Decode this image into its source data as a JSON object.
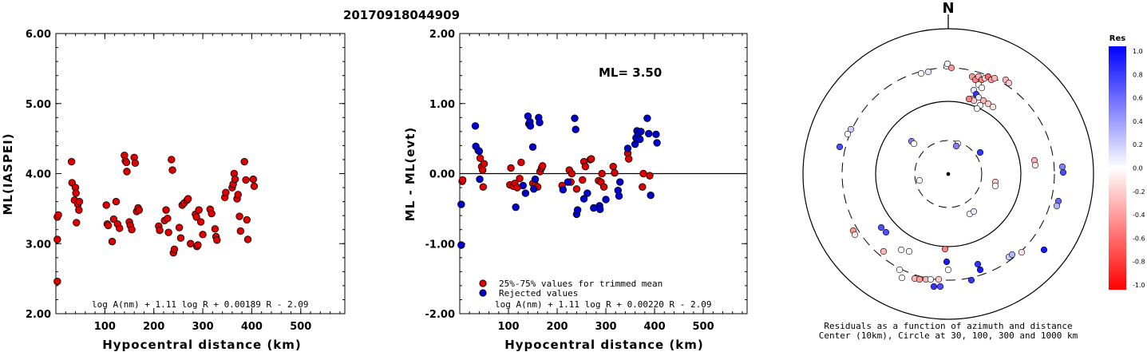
{
  "title": "20170918044909",
  "colors": {
    "trimmed": "#dd0000",
    "rejected": "#0000cc"
  },
  "chart_data": [
    {
      "type": "scatter",
      "id": "ml-vs-distance",
      "title": "",
      "xlabel": "Hypocentral distance (km)",
      "ylabel": "ML(IASPEI)",
      "xlim": [
        0,
        590
      ],
      "ylim": [
        2.0,
        6.0
      ],
      "xticks": [
        "100",
        "200",
        "300",
        "400",
        "500"
      ],
      "yticks": [
        "2.00",
        "3.00",
        "4.00",
        "5.00",
        "6.00"
      ],
      "formula": "log A(nm) + 1.11 log R + 0.00189 R - 2.09",
      "points": [
        [
          3,
          2.46
        ],
        [
          3,
          3.06
        ],
        [
          3,
          3.38
        ],
        [
          5,
          3.41
        ],
        [
          32,
          4.17
        ],
        [
          33,
          3.87
        ],
        [
          38,
          3.62
        ],
        [
          40,
          3.8
        ],
        [
          41,
          3.72
        ],
        [
          42,
          3.3
        ],
        [
          45,
          3.56
        ],
        [
          47,
          3.48
        ],
        [
          48,
          3.6
        ],
        [
          103,
          3.55
        ],
        [
          105,
          3.28
        ],
        [
          107,
          3.26
        ],
        [
          115,
          3.03
        ],
        [
          118,
          3.35
        ],
        [
          123,
          3.6
        ],
        [
          126,
          3.28
        ],
        [
          130,
          3.22
        ],
        [
          140,
          4.26
        ],
        [
          142,
          4.18
        ],
        [
          144,
          4.16
        ],
        [
          145,
          4.03
        ],
        [
          150,
          3.31
        ],
        [
          152,
          3.26
        ],
        [
          155,
          3.2
        ],
        [
          160,
          4.23
        ],
        [
          162,
          4.15
        ],
        [
          165,
          3.46
        ],
        [
          168,
          3.51
        ],
        [
          170,
          3.48
        ],
        [
          210,
          3.25
        ],
        [
          212,
          3.19
        ],
        [
          222,
          3.33
        ],
        [
          225,
          3.48
        ],
        [
          228,
          3.36
        ],
        [
          230,
          3.16
        ],
        [
          236,
          4.2
        ],
        [
          238,
          4.05
        ],
        [
          240,
          2.87
        ],
        [
          242,
          2.92
        ],
        [
          252,
          3.23
        ],
        [
          255,
          3.08
        ],
        [
          258,
          3.55
        ],
        [
          262,
          3.58
        ],
        [
          268,
          3.62
        ],
        [
          270,
          3.64
        ],
        [
          275,
          3.0
        ],
        [
          285,
          3.42
        ],
        [
          287,
          3.38
        ],
        [
          288,
          2.96
        ],
        [
          290,
          2.98
        ],
        [
          292,
          3.48
        ],
        [
          296,
          3.31
        ],
        [
          300,
          3.13
        ],
        [
          315,
          3.49
        ],
        [
          318,
          3.43
        ],
        [
          325,
          3.21
        ],
        [
          327,
          3.1
        ],
        [
          329,
          3.05
        ],
        [
          345,
          3.66
        ],
        [
          347,
          3.73
        ],
        [
          360,
          3.8
        ],
        [
          362,
          3.85
        ],
        [
          364,
          4.0
        ],
        [
          366,
          3.92
        ],
        [
          370,
          3.64
        ],
        [
          372,
          3.7
        ],
        [
          375,
          3.39
        ],
        [
          377,
          3.18
        ],
        [
          385,
          4.17
        ],
        [
          388,
          3.91
        ],
        [
          390,
          3.34
        ],
        [
          392,
          3.06
        ],
        [
          403,
          3.92
        ],
        [
          405,
          3.82
        ]
      ]
    },
    {
      "type": "scatter",
      "id": "residual-vs-distance",
      "title": "",
      "xlabel": "Hypocentral distance (km)",
      "ylabel": "ML - ML(evt)",
      "xlim": [
        0,
        590
      ],
      "ylim": [
        -2.0,
        2.0
      ],
      "xticks": [
        "100",
        "200",
        "300",
        "400",
        "500"
      ],
      "yticks": [
        "-2.00",
        "-1.00",
        "0.00",
        "1.00",
        "2.00"
      ],
      "annotation": "ML= 3.50",
      "formula": "log A(nm) + 1.11 log R + 0.00220 R - 2.09",
      "legend": [
        {
          "label": "25%-75% values for trimmed mean",
          "series": "trimmed"
        },
        {
          "label": "Rejected values",
          "series": "rejected"
        }
      ],
      "series": [
        {
          "name": "25%-75% values for trimmed mean",
          "points": [
            [
              5,
              -0.11
            ],
            [
              6,
              -0.09
            ],
            [
              38,
              0.33
            ],
            [
              42,
              0.22
            ],
            [
              45,
              0.1
            ],
            [
              47,
              0.05
            ],
            [
              48,
              -0.19
            ],
            [
              50,
              0.14
            ],
            [
              103,
              -0.16
            ],
            [
              105,
              0.08
            ],
            [
              110,
              -0.18
            ],
            [
              113,
              -0.14
            ],
            [
              118,
              -0.2
            ],
            [
              123,
              -0.07
            ],
            [
              126,
              0.16
            ],
            [
              150,
              -0.14
            ],
            [
              155,
              -0.16
            ],
            [
              160,
              -0.19
            ],
            [
              165,
              0.03
            ],
            [
              168,
              0.08
            ],
            [
              170,
              0.11
            ],
            [
              210,
              -0.17
            ],
            [
              225,
              0.05
            ],
            [
              228,
              -0.12
            ],
            [
              230,
              0.0
            ],
            [
              240,
              -0.22
            ],
            [
              252,
              -0.09
            ],
            [
              255,
              0.17
            ],
            [
              258,
              0.1
            ],
            [
              268,
              0.2
            ],
            [
              270,
              0.21
            ],
            [
              285,
              -0.1
            ],
            [
              290,
              -0.12
            ],
            [
              292,
              0.0
            ],
            [
              296,
              -0.19
            ],
            [
              315,
              0.1
            ],
            [
              318,
              0.01
            ],
            [
              345,
              0.29
            ],
            [
              347,
              0.21
            ],
            [
              375,
              -0.19
            ],
            [
              377,
              0.0
            ],
            [
              390,
              -0.03
            ]
          ]
        },
        {
          "name": "Rejected values",
          "points": [
            [
              3,
              -1.02
            ],
            [
              3,
              -0.44
            ],
            [
              32,
              0.68
            ],
            [
              33,
              0.39
            ],
            [
              40,
              0.32
            ],
            [
              41,
              -0.08
            ],
            [
              115,
              -0.48
            ],
            [
              130,
              -0.17
            ],
            [
              135,
              -0.28
            ],
            [
              140,
              0.82
            ],
            [
              142,
              0.71
            ],
            [
              144,
              0.74
            ],
            [
              145,
              0.68
            ],
            [
              150,
              0.38
            ],
            [
              152,
              -0.22
            ],
            [
              155,
              -0.08
            ],
            [
              162,
              0.8
            ],
            [
              164,
              0.73
            ],
            [
              212,
              -0.23
            ],
            [
              222,
              -0.12
            ],
            [
              236,
              0.79
            ],
            [
              238,
              0.63
            ],
            [
              240,
              -0.58
            ],
            [
              242,
              -0.52
            ],
            [
              255,
              -0.36
            ],
            [
              262,
              -0.28
            ],
            [
              275,
              -0.49
            ],
            [
              287,
              -0.46
            ],
            [
              288,
              -0.51
            ],
            [
              300,
              -0.37
            ],
            [
              325,
              -0.24
            ],
            [
              327,
              -0.32
            ],
            [
              329,
              -0.12
            ],
            [
              345,
              0.36
            ],
            [
              360,
              0.42
            ],
            [
              362,
              0.51
            ],
            [
              364,
              0.61
            ],
            [
              366,
              0.56
            ],
            [
              370,
              0.49
            ],
            [
              372,
              0.6
            ],
            [
              385,
              0.79
            ],
            [
              388,
              0.57
            ],
            [
              392,
              -0.31
            ],
            [
              403,
              0.56
            ],
            [
              405,
              0.44
            ]
          ]
        }
      ]
    },
    {
      "type": "scatter",
      "id": "azimuth-residual-map",
      "title": "",
      "north_label": "N",
      "caption_line1": "Residuals as a function of azimuth and distance",
      "caption_line2": "Center (10km), Circle at 30, 100, 300 and 1000 km",
      "colorbar": {
        "title": "Res",
        "ticks": [
          "1.0",
          "0.8",
          "0.6",
          "0.4",
          "0.2",
          "0.0",
          "-0.2",
          "-0.4",
          "-0.6",
          "-0.8",
          "-1.0"
        ]
      },
      "points": [
        [
          -2,
          -135,
          0.05
        ],
        [
          -1,
          -138,
          0.05
        ],
        [
          4,
          -133,
          -0.4
        ],
        [
          -34,
          -126,
          0.0
        ],
        [
          -25,
          -128,
          0.1
        ],
        [
          30,
          -122,
          -0.4
        ],
        [
          34,
          -118,
          -0.5
        ],
        [
          38,
          -122,
          -0.3
        ],
        [
          42,
          -118,
          -0.5
        ],
        [
          46,
          -120,
          -0.2
        ],
        [
          50,
          -122,
          -0.6
        ],
        [
          54,
          -118,
          -0.4
        ],
        [
          58,
          -120,
          -0.3
        ],
        [
          72,
          -118,
          -0.3
        ],
        [
          76,
          -114,
          -0.2
        ],
        [
          38,
          -112,
          0.0
        ],
        [
          42,
          -108,
          0.0
        ],
        [
          32,
          -105,
          0.1
        ],
        [
          35,
          -100,
          0.8
        ],
        [
          38,
          -96,
          0.1
        ],
        [
          30,
          -94,
          -0.2
        ],
        [
          44,
          -92,
          -0.3
        ],
        [
          32,
          -92,
          -0.2
        ],
        [
          50,
          -88,
          -0.2
        ],
        [
          40,
          -86,
          0.0
        ],
        [
          26,
          -94,
          -0.5
        ],
        [
          56,
          -84,
          -0.1
        ],
        [
          36,
          -82,
          0.0
        ],
        [
          -122,
          -56,
          0.2
        ],
        [
          -126,
          -50,
          0.0
        ],
        [
          -136,
          -34,
          0.7
        ],
        [
          -46,
          -41,
          0.5
        ],
        [
          -43,
          -38,
          0.0
        ],
        [
          12,
          -38,
          0.0
        ],
        [
          10,
          -35,
          0.5
        ],
        [
          40,
          -27,
          0.8
        ],
        [
          -36,
          8,
          0.0
        ],
        [
          59,
          10,
          -0.2
        ],
        [
          59,
          15,
          0.0
        ],
        [
          27,
          50,
          0.0
        ],
        [
          32,
          47,
          0.1
        ],
        [
          108,
          -17,
          -0.3
        ],
        [
          109,
          -11,
          -0.1
        ],
        [
          143,
          -9,
          0.5
        ],
        [
          144,
          -2,
          0.7
        ],
        [
          138,
          34,
          0.6
        ],
        [
          136,
          40,
          0.3
        ],
        [
          -119,
          71,
          -0.4
        ],
        [
          -117,
          76,
          -0.1
        ],
        [
          -84,
          67,
          0.7
        ],
        [
          -78,
          73,
          0.7
        ],
        [
          -81,
          97,
          -0.3
        ],
        [
          -59,
          95,
          0.0
        ],
        [
          -49,
          97,
          0.0
        ],
        [
          -4,
          94,
          -0.5
        ],
        [
          -2,
          110,
          0.9
        ],
        [
          0,
          120,
          0.0
        ],
        [
          -61,
          120,
          0.0
        ],
        [
          -58,
          130,
          0.0
        ],
        [
          -42,
          131,
          -0.3
        ],
        [
          -36,
          132,
          -0.4
        ],
        [
          -28,
          132,
          -0.3
        ],
        [
          -22,
          132,
          0.0
        ],
        [
          -12,
          132,
          -0.2
        ],
        [
          29,
          133,
          0.8
        ],
        [
          40,
          120,
          0.9
        ],
        [
          37,
          113,
          0.8
        ],
        [
          -18,
          141,
          0.8
        ],
        [
          -10,
          141,
          0.7
        ],
        [
          76,
          104,
          0.2
        ],
        [
          80,
          101,
          0.3
        ],
        [
          92,
          98,
          -0.1
        ],
        [
          120,
          95,
          0.9
        ]
      ]
    }
  ]
}
